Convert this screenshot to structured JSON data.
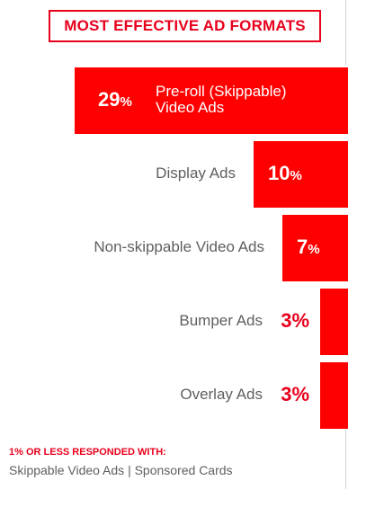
{
  "chart_data": {
    "type": "bar",
    "orientation": "horizontal",
    "title": "MOST EFFECTIVE AD FORMATS",
    "categories": [
      "Pre-roll (Skippable) Video Ads",
      "Display Ads",
      "Non-skippable Video Ads",
      "Bumper Ads",
      "Overlay Ads"
    ],
    "value_labels": [
      "29",
      "10",
      "7",
      "3%",
      "3%"
    ],
    "values": [
      29,
      10,
      7,
      3,
      3
    ],
    "unit": "%",
    "bar_color": "#ff0000",
    "accent_color": "#e8001c"
  },
  "footnote": {
    "heading": "1% OR LESS RESPONDED WITH:",
    "text": "Skippable Video Ads | Sponsored Cards"
  }
}
